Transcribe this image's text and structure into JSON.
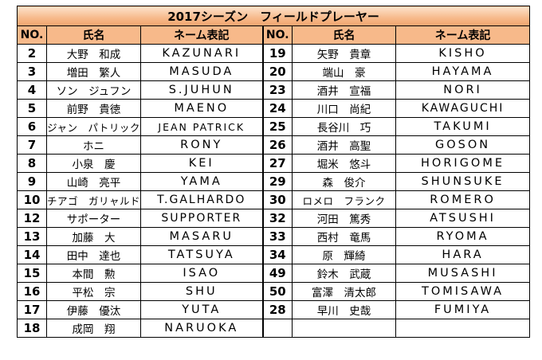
{
  "title": "2017シーズン　フィールドプレーヤー",
  "headers": {
    "no": "NO.",
    "name": "氏名",
    "display": "ネーム表記"
  },
  "left": [
    {
      "no": "2",
      "name": "大野　和成",
      "display": "KAZUNARI"
    },
    {
      "no": "3",
      "name": "増田　繁人",
      "display": "MASUDA"
    },
    {
      "no": "4",
      "name": "ソン　ジュフン",
      "display": "S.JUHUN"
    },
    {
      "no": "5",
      "name": "前野　貴徳",
      "display": "MAENO"
    },
    {
      "no": "6",
      "name": "ジャン　パトリック",
      "display": "JEAN PATRICK"
    },
    {
      "no": "7",
      "name": "ホニ",
      "display": "RONY"
    },
    {
      "no": "8",
      "name": "小泉　慶",
      "display": "KEI"
    },
    {
      "no": "9",
      "name": "山崎　亮平",
      "display": "YAMA"
    },
    {
      "no": "10",
      "name": "チアゴ　ガリャルド",
      "display": "T.GALHARDO"
    },
    {
      "no": "12",
      "name": "サポーター",
      "display": "SUPPORTER"
    },
    {
      "no": "13",
      "name": "加藤　大",
      "display": "MASARU"
    },
    {
      "no": "14",
      "name": "田中　達也",
      "display": "TATSUYA"
    },
    {
      "no": "15",
      "name": "本間　勲",
      "display": "ISAO"
    },
    {
      "no": "16",
      "name": "平松　宗",
      "display": "SHU"
    },
    {
      "no": "17",
      "name": "伊藤　優汰",
      "display": "YUTA"
    },
    {
      "no": "18",
      "name": "成岡　翔",
      "display": "NARUOKA"
    }
  ],
  "right": [
    {
      "no": "19",
      "name": "矢野　貴章",
      "display": "KISHO"
    },
    {
      "no": "20",
      "name": "端山　豪",
      "display": "HAYAMA"
    },
    {
      "no": "23",
      "name": "酒井　宣福",
      "display": "NORI"
    },
    {
      "no": "24",
      "name": "川口　尚紀",
      "display": "KAWAGUCHI"
    },
    {
      "no": "25",
      "name": "長谷川　巧",
      "display": "TAKUMI"
    },
    {
      "no": "26",
      "name": "酒井　高聖",
      "display": "GOSON"
    },
    {
      "no": "27",
      "name": "堀米　悠斗",
      "display": "HORIGOME"
    },
    {
      "no": "29",
      "name": "森　俊介",
      "display": "SHUNSUKE"
    },
    {
      "no": "30",
      "name": "ロメロ　フランク",
      "display": "ROMERO"
    },
    {
      "no": "32",
      "name": "河田　篤秀",
      "display": "ATSUSHI"
    },
    {
      "no": "33",
      "name": "西村　竜馬",
      "display": "RYOMA"
    },
    {
      "no": "34",
      "name": "原　輝綺",
      "display": "HARA"
    },
    {
      "no": "49",
      "name": "鈴木　武蔵",
      "display": "MUSASHI"
    },
    {
      "no": "50",
      "name": "富澤　清太郎",
      "display": "TOMISAWA"
    },
    {
      "no": "28",
      "name": "早川　史哉",
      "display": "FUMIYA"
    },
    {
      "no": "",
      "name": "",
      "display": ""
    }
  ]
}
